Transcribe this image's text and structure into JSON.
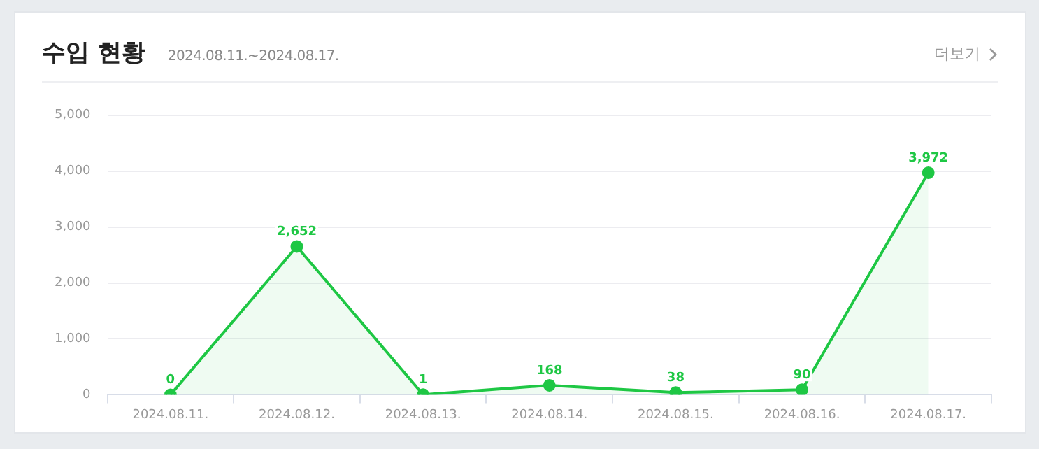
{
  "chart_data": {
    "type": "area",
    "title": "수입 현황",
    "subtitle": "2024.08.11.~2024.08.17.",
    "annotations": [
      "더보기"
    ],
    "categories": [
      "2024.08.11.",
      "2024.08.12.",
      "2024.08.13.",
      "2024.08.14.",
      "2024.08.15.",
      "2024.08.16.",
      "2024.08.17."
    ],
    "series": [
      {
        "color": "#1ec744",
        "values": [
          0,
          2652,
          1,
          168,
          38,
          90,
          3972
        ],
        "value_labels": [
          "0",
          "2,652",
          "1",
          "168",
          "38",
          "90",
          "3,972"
        ]
      }
    ],
    "ylim": [
      0,
      5000
    ],
    "yticks": [
      {
        "value": 0,
        "label": "0"
      },
      {
        "value": 1000,
        "label": "1,000"
      },
      {
        "value": 2000,
        "label": "2,000"
      },
      {
        "value": 3000,
        "label": "3,000"
      },
      {
        "value": 4000,
        "label": "4,000"
      },
      {
        "value": 5000,
        "label": "5,000"
      }
    ],
    "grid": "y",
    "marker": "circle"
  }
}
